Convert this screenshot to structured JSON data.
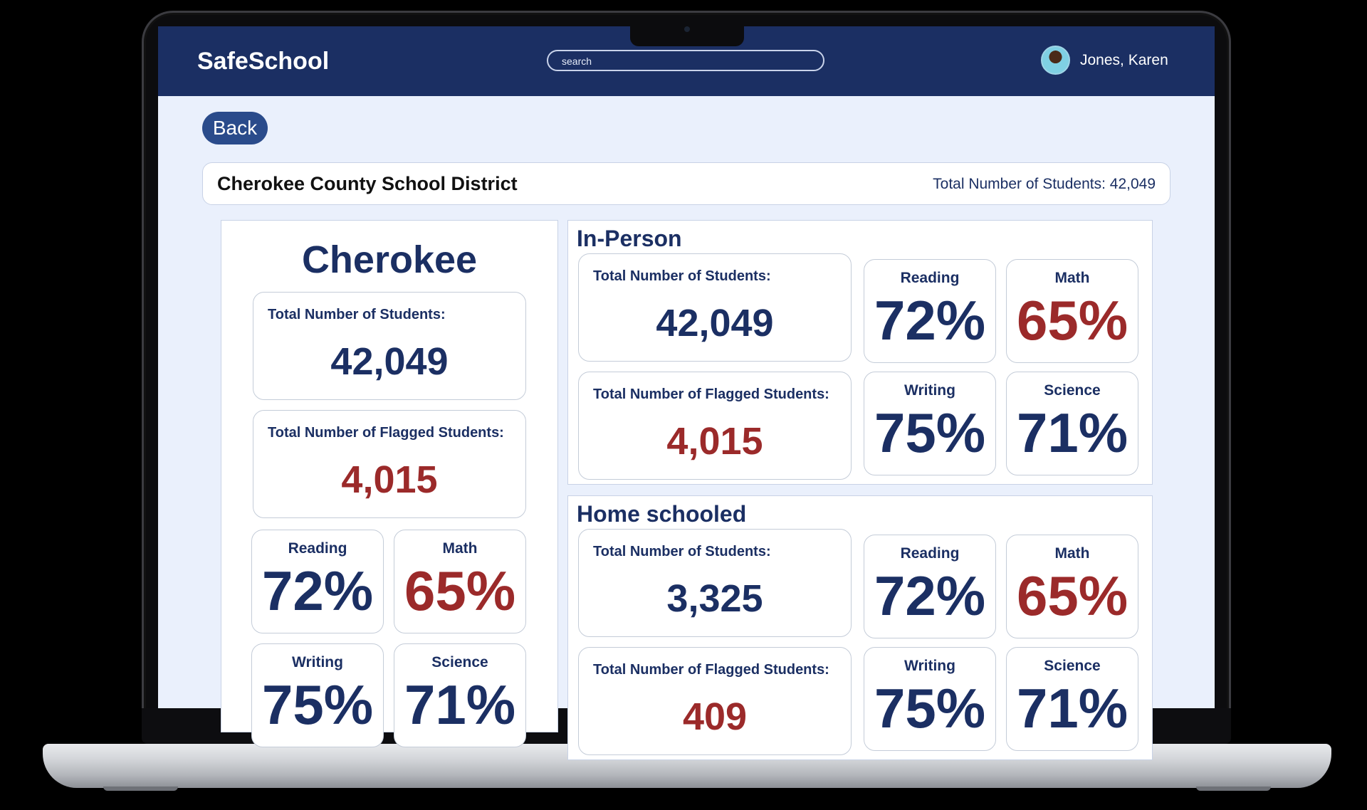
{
  "app": {
    "name": "SafeSchool"
  },
  "search": {
    "placeholder": "search"
  },
  "user": {
    "name": "Jones, Karen"
  },
  "nav": {
    "back_label": "Back"
  },
  "district": {
    "name": "Cherokee County School District",
    "total_label": "Total Number of Students: 42,049"
  },
  "cherokee": {
    "title": "Cherokee",
    "total_students_label": "Total Number of Students:",
    "total_students": "42,049",
    "flagged_label": "Total Number of Flagged Students:",
    "flagged": "4,015",
    "reading_label": "Reading",
    "reading": "72%",
    "math_label": "Math",
    "math": "65%",
    "writing_label": "Writing",
    "writing": "75%",
    "science_label": "Science",
    "science": "71%"
  },
  "in_person": {
    "title": "In-Person",
    "total_students_label": "Total Number of Students:",
    "total_students": "42,049",
    "flagged_label": "Total Number of Flagged Students:",
    "flagged": "4,015",
    "reading_label": "Reading",
    "reading": "72%",
    "math_label": "Math",
    "math": "65%",
    "writing_label": "Writing",
    "writing": "75%",
    "science_label": "Science",
    "science": "71%"
  },
  "home_schooled": {
    "title": "Home schooled",
    "total_students_label": "Total Number of Students:",
    "total_students": "3,325",
    "flagged_label": "Total Number of Flagged Students:",
    "flagged": "409",
    "reading_label": "Reading",
    "reading": "72%",
    "math_label": "Math",
    "math": "65%",
    "writing_label": "Writing",
    "writing": "75%",
    "science_label": "Science",
    "science": "71%"
  },
  "colors": {
    "navy": "#1b2f63",
    "red": "#9b2a2a",
    "background": "#eaf0fc"
  }
}
